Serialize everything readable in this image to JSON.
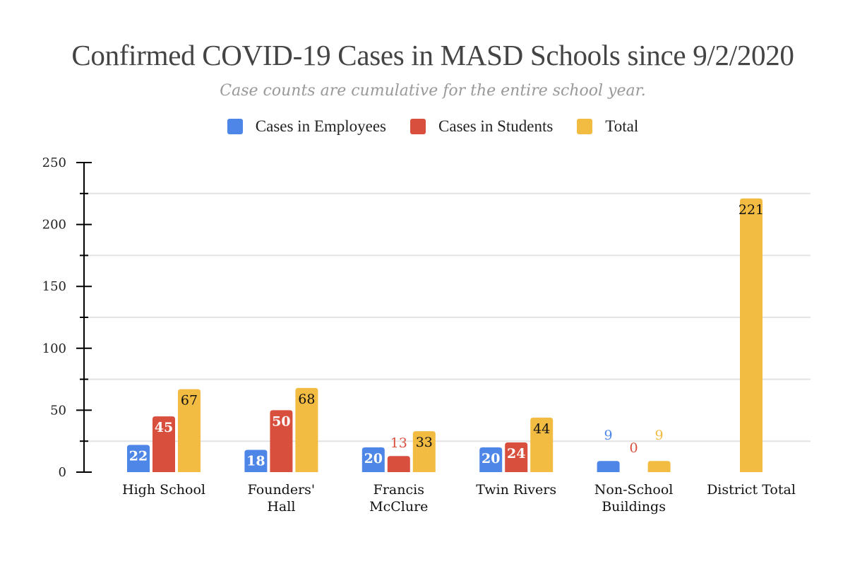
{
  "chart_data": {
    "type": "bar",
    "title": "Confirmed COVID-19 Cases in MASD Schools since 9/2/2020",
    "subtitle": "Case counts are cumulative for the entire school year.",
    "xlabel": "",
    "ylabel": "",
    "ylim": [
      0,
      250
    ],
    "yticks": [
      "0",
      "50",
      "100",
      "150",
      "200",
      "250"
    ],
    "grid": true,
    "legend_position": "top",
    "categories": [
      [
        "High School"
      ],
      [
        "Founders'",
        "Hall"
      ],
      [
        "Francis",
        "McClure"
      ],
      [
        "Twin Rivers"
      ],
      [
        "Non-School",
        "Buildings"
      ],
      [
        "District Total"
      ]
    ],
    "series": [
      {
        "name": "Cases in Employees",
        "color": "#4e86e8",
        "values": [
          22,
          18,
          20,
          20,
          9,
          null
        ]
      },
      {
        "name": "Cases in Students",
        "color": "#d94f3e",
        "values": [
          45,
          50,
          13,
          24,
          0,
          null
        ]
      },
      {
        "name": "Total",
        "color": "#f2bc42",
        "values": [
          67,
          68,
          33,
          44,
          9,
          221
        ]
      }
    ]
  }
}
